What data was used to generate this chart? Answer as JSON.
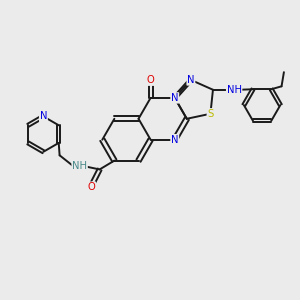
{
  "bg_color": "#ebebeb",
  "bond_color": "#1a1a1a",
  "atom_colors": {
    "N": "#0000e0",
    "O": "#e00000",
    "S": "#bbbb00",
    "H": "#4a8888",
    "C": "#1a1a1a"
  },
  "font_size": 7.2,
  "fig_size": [
    3.0,
    3.0
  ],
  "dpi": 100
}
